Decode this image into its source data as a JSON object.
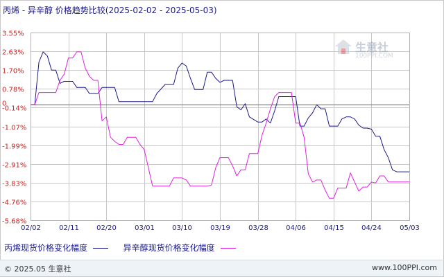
{
  "title": "丙烯 - 异辛醇 价格趋势比较(2025-02-02 - 2025-05-03)",
  "watermark": {
    "name": "生意社",
    "url": "100PPI.COM"
  },
  "footer": {
    "left": "© 2025.05 生意社",
    "right": "www.100PPI.com"
  },
  "colors": {
    "series1": "#1a1a8a",
    "series2": "#e020e0",
    "grid": "#c8c8c8",
    "axis": "#b0b0b0",
    "zero": "#606060",
    "tick": "#cc2222"
  },
  "chart_data": {
    "type": "line",
    "title": "丙烯 - 异辛醇 价格趋势比较(2025-02-02 - 2025-05-03)",
    "x_start": "2025-02-02",
    "x_end": "2025-05-03",
    "x_tick_labels": [
      "02/02",
      "02/11",
      "02/20",
      "03/01",
      "03/10",
      "03/19",
      "03/28",
      "04/06",
      "04/15",
      "04/24",
      "05/03"
    ],
    "y_tick_labels": [
      "3.55%",
      "2.63%",
      "1.70%",
      "0.78%",
      "-0.14%",
      "-1.07%",
      "-1.99%",
      "-2.91%",
      "-3.83%",
      "-4.76%",
      "-5.68%"
    ],
    "y_ticks": [
      3.55,
      2.63,
      1.7,
      0.78,
      -0.14,
      -1.07,
      -1.99,
      -2.91,
      -3.83,
      -4.76,
      -5.68
    ],
    "zero_label": "0",
    "ylim": [
      -5.68,
      3.55
    ],
    "grid": true,
    "legend_position": "bottom-left",
    "series": [
      {
        "name": "丙烯现货价格变化幅度",
        "color": "#1a1a8a",
        "points": [
          [
            "2025-02-02",
            0.0
          ],
          [
            "2025-02-03",
            0.0
          ],
          [
            "2025-02-04",
            2.1
          ],
          [
            "2025-02-05",
            2.6
          ],
          [
            "2025-02-06",
            2.4
          ],
          [
            "2025-02-07",
            1.7
          ],
          [
            "2025-02-08",
            1.7
          ],
          [
            "2025-02-09",
            1.05
          ],
          [
            "2025-02-10",
            1.15
          ],
          [
            "2025-02-11",
            1.15
          ],
          [
            "2025-02-12",
            1.15
          ],
          [
            "2025-02-13",
            0.85
          ],
          [
            "2025-02-15",
            0.85
          ],
          [
            "2025-02-16",
            0.55
          ],
          [
            "2025-02-18",
            0.55
          ],
          [
            "2025-02-19",
            0.85
          ],
          [
            "2025-02-22",
            0.85
          ],
          [
            "2025-02-23",
            0.15
          ],
          [
            "2025-03-03",
            0.15
          ],
          [
            "2025-03-04",
            0.55
          ],
          [
            "2025-03-06",
            1.0
          ],
          [
            "2025-03-08",
            1.0
          ],
          [
            "2025-03-09",
            1.8
          ],
          [
            "2025-03-10",
            2.05
          ],
          [
            "2025-03-11",
            1.9
          ],
          [
            "2025-03-12",
            1.3
          ],
          [
            "2025-03-13",
            0.75
          ],
          [
            "2025-03-15",
            0.75
          ],
          [
            "2025-03-16",
            1.6
          ],
          [
            "2025-03-17",
            1.6
          ],
          [
            "2025-03-18",
            1.3
          ],
          [
            "2025-03-19",
            1.1
          ],
          [
            "2025-03-20",
            1.2
          ],
          [
            "2025-03-22",
            1.2
          ],
          [
            "2025-03-23",
            -0.1
          ],
          [
            "2025-03-24",
            -0.25
          ],
          [
            "2025-03-25",
            0.05
          ],
          [
            "2025-03-26",
            -0.6
          ],
          [
            "2025-03-28",
            -0.85
          ],
          [
            "2025-03-29",
            -0.85
          ],
          [
            "2025-03-30",
            -0.7
          ],
          [
            "2025-03-31",
            -0.9
          ],
          [
            "2025-04-01",
            -0.3
          ],
          [
            "2025-04-02",
            0.4
          ],
          [
            "2025-04-03",
            0.4
          ],
          [
            "2025-04-05",
            0.4
          ],
          [
            "2025-04-06",
            0.4
          ],
          [
            "2025-04-07",
            -1.05
          ],
          [
            "2025-04-08",
            -1.05
          ],
          [
            "2025-04-09",
            -0.65
          ],
          [
            "2025-04-10",
            -0.4
          ],
          [
            "2025-04-11",
            0.0
          ],
          [
            "2025-04-12",
            -0.2
          ],
          [
            "2025-04-13",
            -0.2
          ],
          [
            "2025-04-14",
            -1.05
          ],
          [
            "2025-04-16",
            -1.05
          ],
          [
            "2025-04-17",
            -0.7
          ],
          [
            "2025-04-18",
            -0.6
          ],
          [
            "2025-04-19",
            -0.6
          ],
          [
            "2025-04-20",
            -0.7
          ],
          [
            "2025-04-21",
            -1.0
          ],
          [
            "2025-04-22",
            -1.15
          ],
          [
            "2025-04-23",
            -1.15
          ],
          [
            "2025-04-24",
            -1.2
          ],
          [
            "2025-04-25",
            -1.55
          ],
          [
            "2025-04-26",
            -1.55
          ],
          [
            "2025-04-27",
            -2.2
          ],
          [
            "2025-04-28",
            -2.6
          ],
          [
            "2025-04-29",
            -3.2
          ],
          [
            "2025-04-30",
            -3.3
          ],
          [
            "2025-05-03",
            -3.3
          ]
        ]
      },
      {
        "name": "异辛醇现货价格变化幅度",
        "color": "#e020e0",
        "points": [
          [
            "2025-02-02",
            0.0
          ],
          [
            "2025-02-03",
            0.0
          ],
          [
            "2025-02-04",
            0.6
          ],
          [
            "2025-02-07",
            0.6
          ],
          [
            "2025-02-08",
            0.6
          ],
          [
            "2025-02-09",
            1.2
          ],
          [
            "2025-02-10",
            1.5
          ],
          [
            "2025-02-11",
            2.3
          ],
          [
            "2025-02-12",
            2.3
          ],
          [
            "2025-02-13",
            2.6
          ],
          [
            "2025-02-14",
            2.6
          ],
          [
            "2025-02-15",
            1.8
          ],
          [
            "2025-02-16",
            1.4
          ],
          [
            "2025-02-17",
            1.2
          ],
          [
            "2025-02-18",
            1.2
          ],
          [
            "2025-02-19",
            -0.8
          ],
          [
            "2025-02-20",
            -0.6
          ],
          [
            "2025-02-21",
            -1.6
          ],
          [
            "2025-02-22",
            -1.8
          ],
          [
            "2025-02-23",
            -1.95
          ],
          [
            "2025-02-24",
            -1.95
          ],
          [
            "2025-02-25",
            -1.6
          ],
          [
            "2025-02-27",
            -1.6
          ],
          [
            "2025-02-28",
            -1.95
          ],
          [
            "2025-03-01",
            -2.2
          ],
          [
            "2025-03-02",
            -3.1
          ],
          [
            "2025-03-03",
            -4.0
          ],
          [
            "2025-03-07",
            -4.0
          ],
          [
            "2025-03-08",
            -3.6
          ],
          [
            "2025-03-10",
            -3.6
          ],
          [
            "2025-03-11",
            -3.7
          ],
          [
            "2025-03-12",
            -4.0
          ],
          [
            "2025-03-16",
            -4.0
          ],
          [
            "2025-03-17",
            -3.95
          ],
          [
            "2025-03-18",
            -3.1
          ],
          [
            "2025-03-19",
            -2.6
          ],
          [
            "2025-03-21",
            -2.6
          ],
          [
            "2025-03-22",
            -3.0
          ],
          [
            "2025-03-23",
            -3.5
          ],
          [
            "2025-03-24",
            -3.2
          ],
          [
            "2025-03-25",
            -3.2
          ],
          [
            "2025-03-26",
            -2.4
          ],
          [
            "2025-03-28",
            -2.4
          ],
          [
            "2025-03-29",
            -1.5
          ],
          [
            "2025-03-30",
            -0.9
          ],
          [
            "2025-03-31",
            -0.2
          ],
          [
            "2025-04-01",
            0.4
          ],
          [
            "2025-04-02",
            0.6
          ],
          [
            "2025-04-05",
            0.6
          ],
          [
            "2025-04-06",
            -0.9
          ],
          [
            "2025-04-07",
            -0.9
          ],
          [
            "2025-04-08",
            -1.6
          ],
          [
            "2025-04-09",
            -3.4
          ],
          [
            "2025-04-10",
            -3.8
          ],
          [
            "2025-04-11",
            -3.7
          ],
          [
            "2025-04-12",
            -3.7
          ],
          [
            "2025-04-13",
            -4.2
          ],
          [
            "2025-04-14",
            -4.6
          ],
          [
            "2025-04-15",
            -4.6
          ],
          [
            "2025-04-16",
            -4.1
          ],
          [
            "2025-04-18",
            -4.1
          ],
          [
            "2025-04-19",
            -3.35
          ],
          [
            "2025-04-20",
            -3.8
          ],
          [
            "2025-04-21",
            -4.25
          ],
          [
            "2025-04-22",
            -4.05
          ],
          [
            "2025-04-23",
            -4.05
          ],
          [
            "2025-04-24",
            -3.8
          ],
          [
            "2025-04-25",
            -3.85
          ],
          [
            "2025-04-26",
            -3.5
          ],
          [
            "2025-04-27",
            -3.5
          ],
          [
            "2025-04-28",
            -3.8
          ],
          [
            "2025-05-03",
            -3.8
          ]
        ]
      }
    ]
  }
}
